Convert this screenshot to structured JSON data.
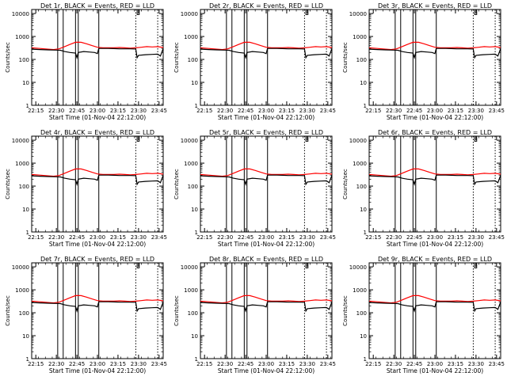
{
  "colors": {
    "background": "#ffffff",
    "axes": "#000000",
    "events": "#000000",
    "lld": "#ff0000"
  },
  "chart_data": [
    {
      "type": "line",
      "title": "Det 1r, BLACK = Events, RED = LLD"
    },
    {
      "type": "line",
      "title": "Det 2r, BLACK = Events, RED = LLD"
    },
    {
      "type": "line",
      "title": "Det 3r, BLACK = Events, RED = LLD"
    },
    {
      "type": "line",
      "title": "Det 4r, BLACK = Events, RED = LLD"
    },
    {
      "type": "line",
      "title": "Det 5r, BLACK = Events, RED = LLD"
    },
    {
      "type": "line",
      "title": "Det 6r, BLACK = Events, RED = LLD"
    },
    {
      "type": "line",
      "title": "Det 7r, BLACK = Events, RED = LLD"
    },
    {
      "type": "line",
      "title": "Det 8r, BLACK = Events, RED = LLD"
    },
    {
      "type": "line",
      "title": "Det 9r, BLACK = Events, RED = LLD"
    }
  ],
  "shared": {
    "xlabel": "Start Time (01-Nov-04 22:12:00)",
    "ylabel": "Counts/sec",
    "xticks": [
      "22:15",
      "22:30",
      "22:45",
      "23:00",
      "23:15",
      "23:30",
      "23:45"
    ],
    "xtick_minutes": [
      15,
      30,
      45,
      60,
      75,
      90,
      105
    ],
    "xlim_minutes": [
      12,
      108
    ],
    "yscale": "log",
    "ylim": [
      1,
      15000
    ],
    "yticks": [
      "1",
      "10",
      "100",
      "1000",
      "10000"
    ],
    "ytick_values": [
      1,
      10,
      100,
      1000,
      10000
    ],
    "events_series": {
      "name": "BLACK = Events",
      "x": [
        12,
        18,
        24,
        30,
        33,
        36,
        40,
        44,
        45,
        46,
        50,
        54,
        58,
        60,
        61,
        64,
        68,
        72,
        76,
        80,
        84,
        88,
        89,
        90,
        95,
        100,
        104,
        106,
        108
      ],
      "y": [
        280,
        270,
        260,
        255,
        250,
        220,
        200,
        190,
        120,
        200,
        220,
        210,
        200,
        180,
        300,
        300,
        300,
        295,
        290,
        290,
        290,
        285,
        120,
        150,
        160,
        165,
        170,
        140,
        300
      ]
    },
    "lld_series": {
      "name": "RED = LLD",
      "x": [
        12,
        18,
        24,
        28,
        32,
        36,
        40,
        44,
        48,
        52,
        56,
        60,
        64,
        68,
        72,
        76,
        80,
        84,
        88,
        92,
        96,
        100,
        104,
        108
      ],
      "y": [
        320,
        300,
        280,
        270,
        290,
        360,
        450,
        560,
        560,
        480,
        400,
        340,
        320,
        320,
        320,
        330,
        320,
        310,
        320,
        340,
        360,
        350,
        360,
        330
      ]
    },
    "solid_vlines_minutes": [
      31,
      35,
      44,
      46,
      61
    ],
    "dotted_vlines_minutes": [
      88,
      104
    ],
    "saa_bar": {
      "start": 89,
      "end": 90.5,
      "level": 9000
    }
  }
}
